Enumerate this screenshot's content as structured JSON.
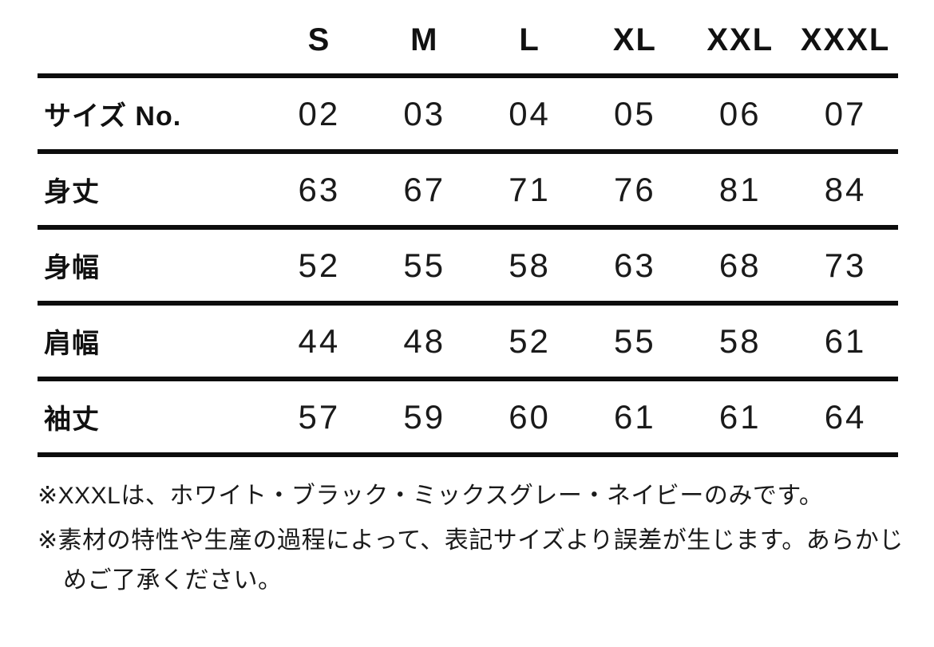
{
  "table": {
    "columns": [
      "S",
      "M",
      "L",
      "XL",
      "XXL",
      "XXXL"
    ],
    "rows": [
      {
        "label": "サイズ No.",
        "values": [
          "02",
          "03",
          "04",
          "05",
          "06",
          "07"
        ]
      },
      {
        "label": "身丈",
        "values": [
          "63",
          "67",
          "71",
          "76",
          "81",
          "84"
        ]
      },
      {
        "label": "身幅",
        "values": [
          "52",
          "55",
          "58",
          "63",
          "68",
          "73"
        ]
      },
      {
        "label": "肩幅",
        "values": [
          "44",
          "48",
          "52",
          "55",
          "58",
          "61"
        ]
      },
      {
        "label": "袖丈",
        "values": [
          "57",
          "59",
          "60",
          "61",
          "61",
          "64"
        ]
      }
    ]
  },
  "notes": [
    "※XXXLは、ホワイト・ブラック・ミックスグレー・ネイビーのみです。",
    "※素材の特性や生産の過程によって、表記サイズより誤差が生じます。あらかじめご了承ください。"
  ],
  "colors": {
    "background": "#ffffff",
    "text": "#1a1a1a",
    "rule_line": "#0d0d0d"
  }
}
